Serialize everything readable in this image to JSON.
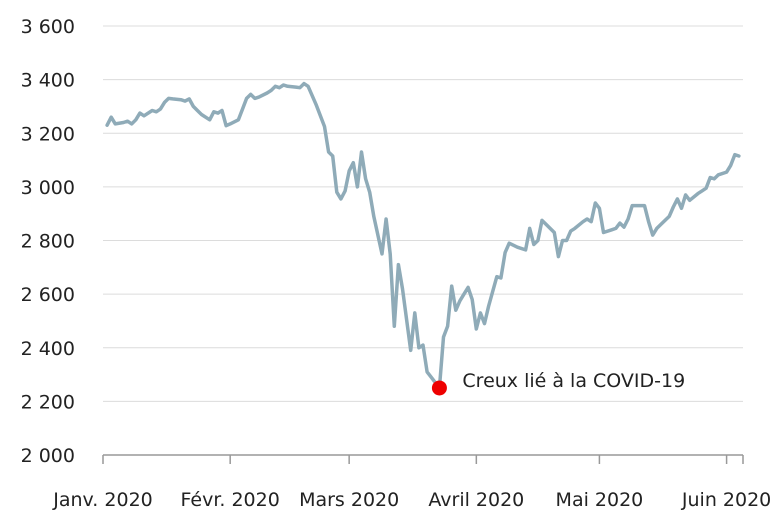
{
  "chart_data": {
    "type": "line",
    "title": "",
    "xlabel": "",
    "ylabel": "",
    "ylim": [
      2000,
      3600
    ],
    "yticks": [
      2000,
      2200,
      2400,
      2600,
      2800,
      3000,
      3200,
      3400,
      3600
    ],
    "ytick_labels": [
      "2 000",
      "2 200",
      "2 400",
      "2 600",
      "2 800",
      "3 000",
      "3 200",
      "3 400",
      "3 600"
    ],
    "xlim": [
      "2020-01-01",
      "2020-06-05"
    ],
    "xticks": [
      "2020-01-01",
      "2020-02-01",
      "2020-03-01",
      "2020-04-01",
      "2020-05-01",
      "2020-06-01"
    ],
    "xtick_labels": [
      "Janv. 2020",
      "Févr. 2020",
      "Mars 2020",
      "Avril 2020",
      "Mai 2020",
      "Juin 2020"
    ],
    "grid": "horizontal",
    "line_color": "#8fabb8",
    "marker_color": "#ee0000",
    "series": [
      {
        "x": [
          "2020-01-02",
          "2020-01-03",
          "2020-01-04",
          "2020-01-06",
          "2020-01-07",
          "2020-01-08",
          "2020-01-09",
          "2020-01-10",
          "2020-01-11",
          "2020-01-13",
          "2020-01-14",
          "2020-01-15",
          "2020-01-16",
          "2020-01-17",
          "2020-01-18",
          "2020-01-20",
          "2020-01-21",
          "2020-01-22",
          "2020-01-23",
          "2020-01-24",
          "2020-01-25",
          "2020-01-27",
          "2020-01-28",
          "2020-01-29",
          "2020-01-30",
          "2020-01-31",
          "2020-02-01",
          "2020-02-03",
          "2020-02-04",
          "2020-02-05",
          "2020-02-06",
          "2020-02-07",
          "2020-02-08",
          "2020-02-10",
          "2020-02-11",
          "2020-02-12",
          "2020-02-13",
          "2020-02-14",
          "2020-02-15",
          "2020-02-17",
          "2020-02-18",
          "2020-02-19",
          "2020-02-20",
          "2020-02-21",
          "2020-02-22",
          "2020-02-24",
          "2020-02-25",
          "2020-02-26",
          "2020-02-27",
          "2020-02-28",
          "2020-02-29",
          "2020-03-01",
          "2020-03-02",
          "2020-03-03",
          "2020-03-04",
          "2020-03-05",
          "2020-03-06",
          "2020-03-07",
          "2020-03-09",
          "2020-03-10",
          "2020-03-11",
          "2020-03-12",
          "2020-03-13",
          "2020-03-14",
          "2020-03-16",
          "2020-03-17",
          "2020-03-18",
          "2020-03-19",
          "2020-03-20",
          "2020-03-21",
          "2020-03-22",
          "2020-03-23",
          "2020-03-24",
          "2020-03-25",
          "2020-03-26",
          "2020-03-27",
          "2020-03-28",
          "2020-03-29",
          "2020-03-30",
          "2020-03-31",
          "2020-04-01",
          "2020-04-02",
          "2020-04-03",
          "2020-04-04",
          "2020-04-06",
          "2020-04-07",
          "2020-04-08",
          "2020-04-09",
          "2020-04-11",
          "2020-04-13",
          "2020-04-14",
          "2020-04-15",
          "2020-04-16",
          "2020-04-17",
          "2020-04-18",
          "2020-04-20",
          "2020-04-21",
          "2020-04-22",
          "2020-04-23",
          "2020-04-24",
          "2020-04-25",
          "2020-04-27",
          "2020-04-28",
          "2020-04-29",
          "2020-04-30",
          "2020-05-01",
          "2020-05-02",
          "2020-05-04",
          "2020-05-05",
          "2020-05-06",
          "2020-05-07",
          "2020-05-08",
          "2020-05-09",
          "2020-05-11",
          "2020-05-12",
          "2020-05-13",
          "2020-05-14",
          "2020-05-15",
          "2020-05-16",
          "2020-05-18",
          "2020-05-19",
          "2020-05-20",
          "2020-05-21",
          "2020-05-22",
          "2020-05-23",
          "2020-05-25",
          "2020-05-26",
          "2020-05-27",
          "2020-05-28",
          "2020-05-29",
          "2020-05-30",
          "2020-06-01",
          "2020-06-02",
          "2020-06-03",
          "2020-06-04"
        ],
        "values": [
          3230,
          3260,
          3235,
          3240,
          3245,
          3235,
          3250,
          3275,
          3265,
          3285,
          3280,
          3290,
          3315,
          3330,
          3328,
          3325,
          3320,
          3328,
          3300,
          3285,
          3270,
          3250,
          3280,
          3275,
          3285,
          3228,
          3235,
          3250,
          3290,
          3330,
          3345,
          3330,
          3335,
          3350,
          3360,
          3375,
          3370,
          3380,
          3375,
          3372,
          3370,
          3385,
          3375,
          3340,
          3305,
          3225,
          3130,
          3115,
          2980,
          2955,
          2985,
          3060,
          3090,
          3000,
          3130,
          3030,
          2980,
          2890,
          2750,
          2880,
          2750,
          2480,
          2710,
          2620,
          2390,
          2530,
          2400,
          2410,
          2310,
          2290,
          2270,
          2250,
          2440,
          2480,
          2630,
          2540,
          2575,
          2600,
          2625,
          2580,
          2470,
          2530,
          2490,
          2555,
          2665,
          2660,
          2755,
          2790,
          2775,
          2765,
          2845,
          2785,
          2800,
          2875,
          2860,
          2830,
          2740,
          2800,
          2800,
          2835,
          2845,
          2870,
          2880,
          2870,
          2940,
          2920,
          2830,
          2840,
          2845,
          2865,
          2850,
          2880,
          2930,
          2930,
          2930,
          2870,
          2820,
          2845,
          2860,
          2890,
          2925,
          2955,
          2920,
          2970,
          2950,
          2975,
          2985,
          2995,
          3035,
          3030,
          3045,
          3055,
          3080,
          3120,
          3115
        ]
      }
    ],
    "annotations": [
      {
        "text": "Creux lié à la COVID-19",
        "x": "2020-03-23",
        "y": 2250
      }
    ]
  }
}
